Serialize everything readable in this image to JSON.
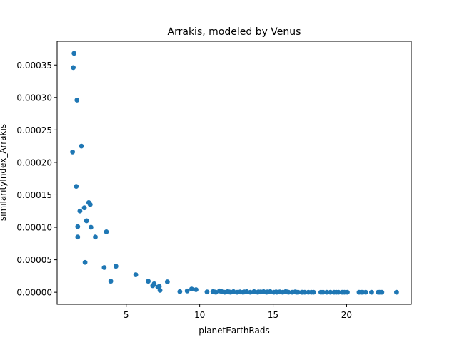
{
  "chart_data": {
    "type": "scatter",
    "title": "Arrakis, modeled by Venus",
    "xlabel": "planetEarthRads",
    "ylabel": "similarityIndex_Arrakis",
    "xlim": [
      0.3,
      24.4
    ],
    "ylim": [
      -1.85e-05,
      0.0003865
    ],
    "xticks": [
      5,
      10,
      15,
      20
    ],
    "xtick_labels": [
      "5",
      "10",
      "15",
      "20"
    ],
    "yticks": [
      0,
      5e-05,
      0.0001,
      0.00015,
      0.0002,
      0.00025,
      0.0003,
      0.00035
    ],
    "ytick_labels": [
      "0.00000",
      "0.00005",
      "0.00010",
      "0.00015",
      "0.00020",
      "0.00025",
      "0.00030",
      "0.00035"
    ],
    "grid": false,
    "legend": "none",
    "marker_color": "#1f77b4",
    "points": [
      [
        1.45,
        0.000368
      ],
      [
        1.4,
        0.000346
      ],
      [
        1.65,
        0.000296
      ],
      [
        1.95,
        0.000225
      ],
      [
        1.35,
        0.000216
      ],
      [
        1.6,
        0.000163
      ],
      [
        2.45,
        0.000138
      ],
      [
        2.55,
        0.000135
      ],
      [
        2.15,
        0.00013
      ],
      [
        1.85,
        0.000125
      ],
      [
        2.3,
        0.00011
      ],
      [
        1.7,
        0.000101
      ],
      [
        2.6,
        0.0001
      ],
      [
        3.65,
        9.3e-05
      ],
      [
        1.7,
        8.5e-05
      ],
      [
        2.9,
        8.5e-05
      ],
      [
        2.2,
        4.6e-05
      ],
      [
        4.3,
        4e-05
      ],
      [
        3.5,
        3.8e-05
      ],
      [
        3.95,
        1.7e-05
      ],
      [
        5.65,
        2.7e-05
      ],
      [
        6.5,
        1.7e-05
      ],
      [
        7.8,
        1.6e-05
      ],
      [
        6.8,
        1e-05
      ],
      [
        6.9,
        1.3e-05
      ],
      [
        7.15,
        8e-06
      ],
      [
        7.25,
        9e-06
      ],
      [
        7.3,
        3e-06
      ],
      [
        8.65,
        1e-06
      ],
      [
        9.15,
        2e-06
      ],
      [
        9.45,
        5e-06
      ],
      [
        9.75,
        4e-06
      ],
      [
        10.5,
        5e-07
      ],
      [
        10.9,
        1e-06
      ],
      [
        11.1,
        0.0
      ],
      [
        11.35,
        2e-06
      ],
      [
        11.5,
        1e-06
      ],
      [
        11.7,
        0.0
      ],
      [
        11.9,
        1e-06
      ],
      [
        12.1,
        0.0
      ],
      [
        12.3,
        1e-06
      ],
      [
        12.55,
        0.0
      ],
      [
        12.75,
        5e-07
      ],
      [
        12.95,
        0.0
      ],
      [
        13.2,
        1e-06
      ],
      [
        13.45,
        0.0
      ],
      [
        13.7,
        1e-06
      ],
      [
        13.95,
        0.0
      ],
      [
        14.15,
        5e-07
      ],
      [
        14.35,
        1e-06
      ],
      [
        14.55,
        0.0
      ],
      [
        14.8,
        1e-06
      ],
      [
        15.05,
        0.0
      ],
      [
        15.25,
        0.0
      ],
      [
        15.45,
        5e-07
      ],
      [
        15.65,
        0.0
      ],
      [
        15.85,
        1e-06
      ],
      [
        16.05,
        0.0
      ],
      [
        16.3,
        0.0
      ],
      [
        16.5,
        5e-07
      ],
      [
        16.7,
        0.0
      ],
      [
        16.95,
        0.0
      ],
      [
        17.15,
        0.0
      ],
      [
        17.4,
        0.0
      ],
      [
        17.75,
        0.0
      ],
      [
        18.25,
        0.0
      ],
      [
        18.65,
        0.0
      ],
      [
        18.9,
        0.0
      ],
      [
        19.15,
        0.0
      ],
      [
        19.45,
        0.0
      ],
      [
        19.7,
        0.0
      ],
      [
        20.05,
        0.0
      ],
      [
        20.85,
        0.0
      ],
      [
        21.1,
        0.0
      ],
      [
        21.3,
        0.0
      ],
      [
        21.7,
        0.0
      ],
      [
        22.15,
        0.0
      ],
      [
        22.4,
        0.0
      ],
      [
        23.4,
        0.0
      ],
      [
        11.0,
        5e-07
      ],
      [
        12.0,
        5e-07
      ],
      [
        13.05,
        5e-07
      ],
      [
        14.0,
        5e-07
      ],
      [
        14.6,
        5e-07
      ],
      [
        15.2,
        5e-07
      ],
      [
        15.95,
        5e-07
      ],
      [
        16.6,
        0.0
      ],
      [
        17.0,
        0.0
      ],
      [
        17.6,
        0.0
      ],
      [
        18.4,
        0.0
      ],
      [
        19.3,
        0.0
      ],
      [
        19.85,
        0.0
      ],
      [
        21.0,
        0.0
      ],
      [
        22.25,
        0.0
      ]
    ]
  }
}
